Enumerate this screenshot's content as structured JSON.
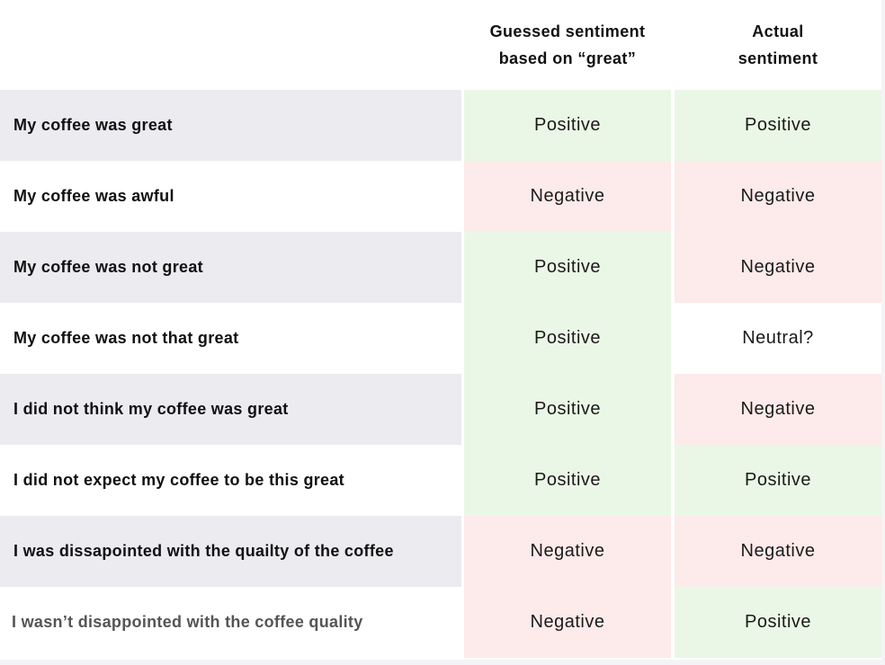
{
  "headers": {
    "guessed": "Guessed sentiment\nbased on “great”",
    "actual": "Actual\nsentiment"
  },
  "colors": {
    "positive": "#ebf7e6",
    "negative": "#fdeaea",
    "neutral": "#ffffff",
    "row_shaded": "#ebebf0",
    "row_plain": "#ffffff"
  },
  "rows": [
    {
      "sentence": "My coffee was great",
      "guessed": "Positive",
      "actual": "Positive"
    },
    {
      "sentence": "My coffee was awful",
      "guessed": "Negative",
      "actual": "Negative"
    },
    {
      "sentence": "My coffee was not great",
      "guessed": "Positive",
      "actual": "Negative"
    },
    {
      "sentence": "My coffee was not that great",
      "guessed": "Positive",
      "actual": "Neutral?"
    },
    {
      "sentence": "I did not think my coffee was great",
      "guessed": "Positive",
      "actual": "Negative"
    },
    {
      "sentence": "I did not expect my coffee to be this great",
      "guessed": "Positive",
      "actual": "Positive"
    },
    {
      "sentence": "I was dissapointed with the quailty of the coffee",
      "guessed": "Negative",
      "actual": "Negative"
    },
    {
      "sentence": "I wasn’t disappointed with the coffee quality",
      "guessed": "Negative",
      "actual": "Positive"
    }
  ]
}
